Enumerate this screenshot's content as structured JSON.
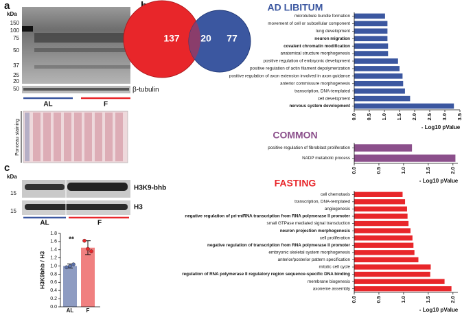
{
  "panel_labels": [
    "a",
    "b",
    "c"
  ],
  "blot_a": {
    "unit": "kDa",
    "markers": [
      "150",
      "100",
      "75",
      "50",
      "37",
      "25",
      "20"
    ],
    "loading_marker": "50",
    "loading_label": "β-tubulin",
    "groups": [
      "AL",
      "F"
    ],
    "stain": "Ponceau staining"
  },
  "blot_c": {
    "unit": "kDa",
    "markers": [
      "15",
      "15"
    ],
    "labels": [
      "H3K9-bhb",
      "H3"
    ],
    "groups": [
      "AL",
      "F"
    ]
  },
  "chart_data": [
    {
      "type": "venn",
      "values": [
        137,
        20,
        77
      ],
      "colors": [
        "#e8262a",
        "#8a3d6b",
        "#3b57a0"
      ]
    },
    {
      "type": "hbar",
      "title": "AD LIBITUM",
      "title_color": "#3b57a0",
      "color": "#3b57a0",
      "categories": [
        "microtubule bundle formation",
        "movement of cell or subcellular component",
        "lung development",
        "neuron migration",
        "covalent chromatin modification",
        "anatomical structure morphogenesis",
        "positive regulation of embryonic development",
        "positive regulation of actin filament depolymerization",
        "positive regulation of axon extension involved in axon guidance",
        "anterior commissure morphogenesis",
        "transcription, DNA-templated",
        "cell development",
        "nervous system development"
      ],
      "bold": [
        false,
        false,
        false,
        true,
        true,
        false,
        false,
        false,
        false,
        false,
        false,
        false,
        true
      ],
      "values": [
        1.02,
        1.1,
        1.1,
        1.1,
        1.12,
        1.12,
        1.45,
        1.5,
        1.6,
        1.62,
        1.68,
        1.85,
        3.3
      ],
      "xlim": [
        0,
        3.5
      ],
      "xticks": [
        {
          "value": 0,
          "label": "0.0"
        },
        0.5,
        {
          "value": 1,
          "label": "1.0"
        },
        1.5,
        {
          "value": 2,
          "label": "2.0"
        },
        2.5,
        {
          "value": 3,
          "label": "3.0"
        },
        3.5
      ],
      "xlabel": "- Log10 pValue"
    },
    {
      "type": "hbar",
      "title": "COMMON",
      "title_color": "#8b4f8b",
      "color": "#8b4f8b",
      "categories": [
        "positive regulation of fibroblast proliferation",
        "NADP metabolic process"
      ],
      "bold": [
        false,
        false
      ],
      "values": [
        1.17,
        2.05
      ],
      "xlim": [
        0,
        2.1
      ],
      "xticks": [
        {
          "value": 0,
          "label": "0.0"
        },
        0.5,
        {
          "value": 1,
          "label": "1.0"
        },
        1.5,
        {
          "value": 2,
          "label": "2.0"
        }
      ],
      "xlabel": "- Log10 pValue"
    },
    {
      "type": "hbar",
      "title": "FASTING",
      "title_color": "#e8262a",
      "color": "#e8262a",
      "categories": [
        "cell chemotaxis",
        "transcription, DNA-templated",
        "angiogenesis",
        "negative regulation of pri-miRNA transcription from RNA polymerase II promoter",
        "small GTPase mediated signal transduction",
        "neuron projection morphogenesis",
        "cell proliferation",
        "negative regulation of transcription from RNA polymerase II promoter",
        "embryonic skeletal system morphogenesis",
        "anterior/posterior pattern specification",
        "mitotic cell cycle",
        "regulation of RNA polymerase II regulatory region sequence-specific DNA binding",
        "membrane biogenesis",
        "axoneme assembly"
      ],
      "bold": [
        false,
        false,
        false,
        true,
        false,
        true,
        false,
        true,
        false,
        false,
        false,
        true,
        false,
        false
      ],
      "values": [
        0.98,
        1.03,
        1.07,
        1.08,
        1.1,
        1.14,
        1.18,
        1.2,
        1.22,
        1.3,
        1.55,
        1.54,
        1.83,
        1.97
      ],
      "xlim": [
        0,
        2.1
      ],
      "xticks": [
        {
          "value": 0,
          "label": "0.0"
        },
        0.5,
        {
          "value": 1,
          "label": "1.0"
        },
        1.5,
        {
          "value": 2,
          "label": "2.0"
        }
      ],
      "xlabel": "- Log10 pValue"
    },
    {
      "type": "bar",
      "categories": [
        "AL",
        "F"
      ],
      "values": [
        1.0,
        1.45
      ],
      "errors": [
        0.05,
        0.17
      ],
      "points": [
        [
          0.97,
          1.0,
          1.04
        ],
        [
          1.62,
          1.42,
          1.36
        ]
      ],
      "colors": [
        "#8e9cc2",
        "#f08080"
      ],
      "ylim": [
        0,
        1.8
      ],
      "yticks": [
        {
          "value": 0,
          "label": "0.0"
        },
        0.2,
        0.4,
        0.6,
        0.8,
        {
          "value": 1,
          "label": "1.0"
        },
        1.2,
        1.4,
        1.6,
        1.8
      ],
      "ylabel": "H3K9bhb / H3",
      "annotation": "**"
    }
  ]
}
